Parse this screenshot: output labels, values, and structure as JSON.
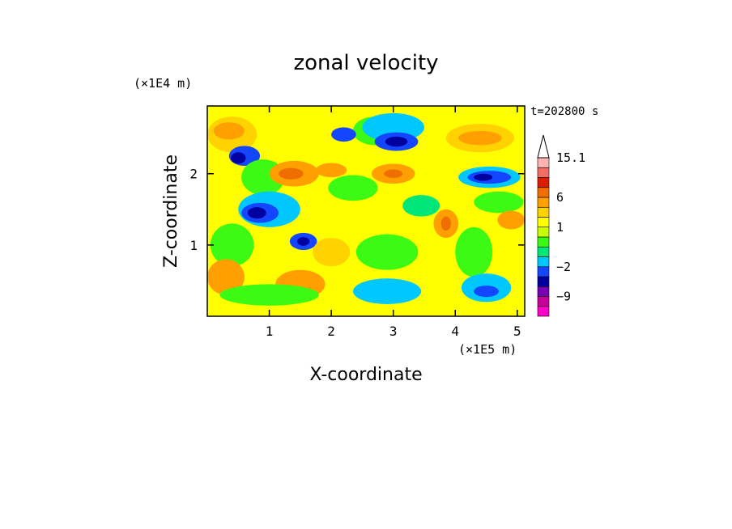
{
  "chart_data": {
    "type": "heatmap",
    "title": "zonal velocity",
    "time_label": "t=202800 s",
    "xlabel": "X-coordinate",
    "ylabel": "Z-coordinate",
    "x_scale_label": "(×1E5 m)",
    "y_scale_label": "(×1E4 m)",
    "xlim": [
      0,
      5.12
    ],
    "ylim": [
      0,
      2.95
    ],
    "x_ticks": [
      1,
      2,
      3,
      4,
      5
    ],
    "x_tick_labels": [
      "1",
      "2",
      "3",
      "4",
      "5"
    ],
    "y_ticks": [
      1,
      2
    ],
    "y_tick_labels": [
      "1",
      "2"
    ],
    "colorbar": {
      "levels": [
        -15,
        -12,
        -9,
        -6,
        -4,
        -2,
        -1,
        0,
        0.5,
        1,
        2,
        4,
        6,
        8,
        10,
        12,
        15.1
      ],
      "colors": [
        "#ff00c8",
        "#c8009b",
        "#7800b4",
        "#0000a0",
        "#1446ff",
        "#00c8ff",
        "#00e678",
        "#3cfa14",
        "#c8ff00",
        "#ffff00",
        "#ffd200",
        "#ffa000",
        "#f06e00",
        "#dc1e00",
        "#f06e64",
        "#ffb4b4"
      ],
      "labeled_levels": [
        "15.1",
        "6",
        "1",
        "−2",
        "−9"
      ],
      "label_values": [
        15.1,
        6,
        1,
        -2,
        -9
      ],
      "extend": "max"
    },
    "field": {
      "background": "#ffff00",
      "regions": [
        {
          "color": "#ffd200",
          "cx": 0.4,
          "cy": 2.55,
          "rx": 0.4,
          "ry": 0.25
        },
        {
          "color": "#ffa000",
          "cx": 0.35,
          "cy": 2.6,
          "rx": 0.25,
          "ry": 0.12
        },
        {
          "color": "#1446ff",
          "cx": 0.6,
          "cy": 2.25,
          "rx": 0.25,
          "ry": 0.14
        },
        {
          "color": "#0000a0",
          "cx": 0.5,
          "cy": 2.22,
          "rx": 0.12,
          "ry": 0.08
        },
        {
          "color": "#3cfa14",
          "cx": 0.9,
          "cy": 1.95,
          "rx": 0.35,
          "ry": 0.25
        },
        {
          "color": "#ffa000",
          "cx": 1.4,
          "cy": 2.0,
          "rx": 0.4,
          "ry": 0.18
        },
        {
          "color": "#f06e00",
          "cx": 1.35,
          "cy": 2.0,
          "rx": 0.2,
          "ry": 0.08
        },
        {
          "color": "#00c8ff",
          "cx": 1.0,
          "cy": 1.5,
          "rx": 0.5,
          "ry": 0.25
        },
        {
          "color": "#1446ff",
          "cx": 0.85,
          "cy": 1.45,
          "rx": 0.3,
          "ry": 0.14
        },
        {
          "color": "#0000a0",
          "cx": 0.8,
          "cy": 1.45,
          "rx": 0.15,
          "ry": 0.08
        },
        {
          "color": "#1446ff",
          "cx": 1.55,
          "cy": 1.05,
          "rx": 0.22,
          "ry": 0.12
        },
        {
          "color": "#0000a0",
          "cx": 1.55,
          "cy": 1.05,
          "rx": 0.1,
          "ry": 0.06
        },
        {
          "color": "#3cfa14",
          "cx": 0.4,
          "cy": 1.0,
          "rx": 0.35,
          "ry": 0.3
        },
        {
          "color": "#ffa000",
          "cx": 0.3,
          "cy": 0.55,
          "rx": 0.3,
          "ry": 0.25
        },
        {
          "color": "#ffa000",
          "cx": 1.5,
          "cy": 0.45,
          "rx": 0.4,
          "ry": 0.2
        },
        {
          "color": "#3cfa14",
          "cx": 2.7,
          "cy": 2.6,
          "rx": 0.35,
          "ry": 0.2
        },
        {
          "color": "#1446ff",
          "cx": 2.2,
          "cy": 2.55,
          "rx": 0.2,
          "ry": 0.1
        },
        {
          "color": "#3cfa14",
          "cx": 2.35,
          "cy": 1.8,
          "rx": 0.4,
          "ry": 0.18
        },
        {
          "color": "#ffa000",
          "cx": 2.0,
          "cy": 2.05,
          "rx": 0.25,
          "ry": 0.1
        },
        {
          "color": "#00c8ff",
          "cx": 3.0,
          "cy": 2.65,
          "rx": 0.5,
          "ry": 0.2
        },
        {
          "color": "#1446ff",
          "cx": 3.05,
          "cy": 2.45,
          "rx": 0.35,
          "ry": 0.13
        },
        {
          "color": "#0000a0",
          "cx": 3.05,
          "cy": 2.45,
          "rx": 0.18,
          "ry": 0.07
        },
        {
          "color": "#ffa000",
          "cx": 3.0,
          "cy": 2.0,
          "rx": 0.35,
          "ry": 0.14
        },
        {
          "color": "#f06e00",
          "cx": 3.0,
          "cy": 2.0,
          "rx": 0.15,
          "ry": 0.06
        },
        {
          "color": "#00e678",
          "cx": 3.45,
          "cy": 1.55,
          "rx": 0.3,
          "ry": 0.15
        },
        {
          "color": "#3cfa14",
          "cx": 2.9,
          "cy": 0.9,
          "rx": 0.5,
          "ry": 0.25
        },
        {
          "color": "#00c8ff",
          "cx": 2.9,
          "cy": 0.35,
          "rx": 0.55,
          "ry": 0.18
        },
        {
          "color": "#ffd200",
          "cx": 4.4,
          "cy": 2.5,
          "rx": 0.55,
          "ry": 0.2
        },
        {
          "color": "#ffa000",
          "cx": 4.4,
          "cy": 2.5,
          "rx": 0.35,
          "ry": 0.1
        },
        {
          "color": "#00c8ff",
          "cx": 4.55,
          "cy": 1.95,
          "rx": 0.5,
          "ry": 0.15
        },
        {
          "color": "#1446ff",
          "cx": 4.55,
          "cy": 1.95,
          "rx": 0.35,
          "ry": 0.09
        },
        {
          "color": "#0000a0",
          "cx": 4.45,
          "cy": 1.95,
          "rx": 0.15,
          "ry": 0.05
        },
        {
          "color": "#3cfa14",
          "cx": 4.7,
          "cy": 1.6,
          "rx": 0.4,
          "ry": 0.15
        },
        {
          "color": "#ffa000",
          "cx": 4.9,
          "cy": 1.35,
          "rx": 0.22,
          "ry": 0.13
        },
        {
          "color": "#ffa000",
          "cx": 3.85,
          "cy": 1.3,
          "rx": 0.2,
          "ry": 0.2
        },
        {
          "color": "#f06e00",
          "cx": 3.85,
          "cy": 1.3,
          "rx": 0.08,
          "ry": 0.1
        },
        {
          "color": "#3cfa14",
          "cx": 4.3,
          "cy": 0.9,
          "rx": 0.3,
          "ry": 0.35
        },
        {
          "color": "#00c8ff",
          "cx": 4.5,
          "cy": 0.4,
          "rx": 0.4,
          "ry": 0.2
        },
        {
          "color": "#1446ff",
          "cx": 4.5,
          "cy": 0.35,
          "rx": 0.2,
          "ry": 0.08
        },
        {
          "color": "#3cfa14",
          "cx": 1.0,
          "cy": 0.3,
          "rx": 0.8,
          "ry": 0.15
        },
        {
          "color": "#ffd200",
          "cx": 2.0,
          "cy": 0.9,
          "rx": 0.3,
          "ry": 0.2
        }
      ]
    }
  }
}
